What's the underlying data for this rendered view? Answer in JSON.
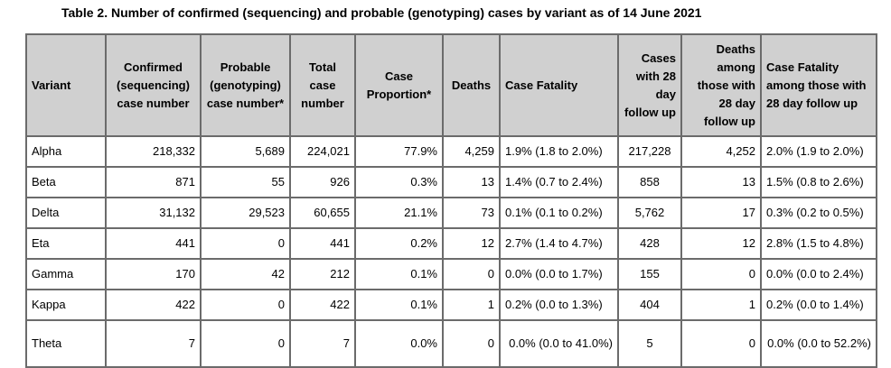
{
  "title": "Table 2. Number of confirmed (sequencing) and probable (genotyping) cases by variant as of 14 June 2021",
  "headers": [
    "Variant",
    "Confirmed (sequencing) case number",
    "Probable (genotyping) case number*",
    "Total case number",
    "Case Proportion*",
    "Deaths",
    "Case Fatality",
    "Cases with 28 day follow up",
    "Deaths among those with 28 day follow up",
    "Case Fatality among those with 28 day follow up"
  ],
  "rows": [
    [
      "Alpha",
      "218,332",
      "5,689",
      "224,021",
      "77.9%",
      "4,259",
      "1.9% (1.8 to 2.0%)",
      "217,228",
      "4,252",
      "2.0% (1.9 to 2.0%)"
    ],
    [
      "Beta",
      "871",
      "55",
      "926",
      "0.3%",
      "13",
      "1.4% (0.7 to 2.4%)",
      "858",
      "13",
      "1.5% (0.8 to 2.6%)"
    ],
    [
      "Delta",
      "31,132",
      "29,523",
      "60,655",
      "21.1%",
      "73",
      "0.1% (0.1 to 0.2%)",
      "5,762",
      "17",
      "0.3% (0.2 to 0.5%)"
    ],
    [
      "Eta",
      "441",
      "0",
      "441",
      "0.2%",
      "12",
      "2.7% (1.4 to 4.7%)",
      "428",
      "12",
      "2.8% (1.5 to 4.8%)"
    ],
    [
      "Gamma",
      "170",
      "42",
      "212",
      "0.1%",
      "0",
      "0.0% (0.0 to 1.7%)",
      "155",
      "0",
      "0.0% (0.0 to 2.4%)"
    ],
    [
      "Kappa",
      "422",
      "0",
      "422",
      "0.1%",
      "1",
      "0.2% (0.0 to 1.3%)",
      "404",
      "1",
      "0.2% (0.0 to 1.4%)"
    ],
    [
      "Theta",
      "7",
      "0",
      "7",
      "0.0%",
      "0",
      "0.0% (0.0 to 41.0%)",
      "5",
      "0",
      "0.0% (0.0 to 52.2%)"
    ]
  ]
}
